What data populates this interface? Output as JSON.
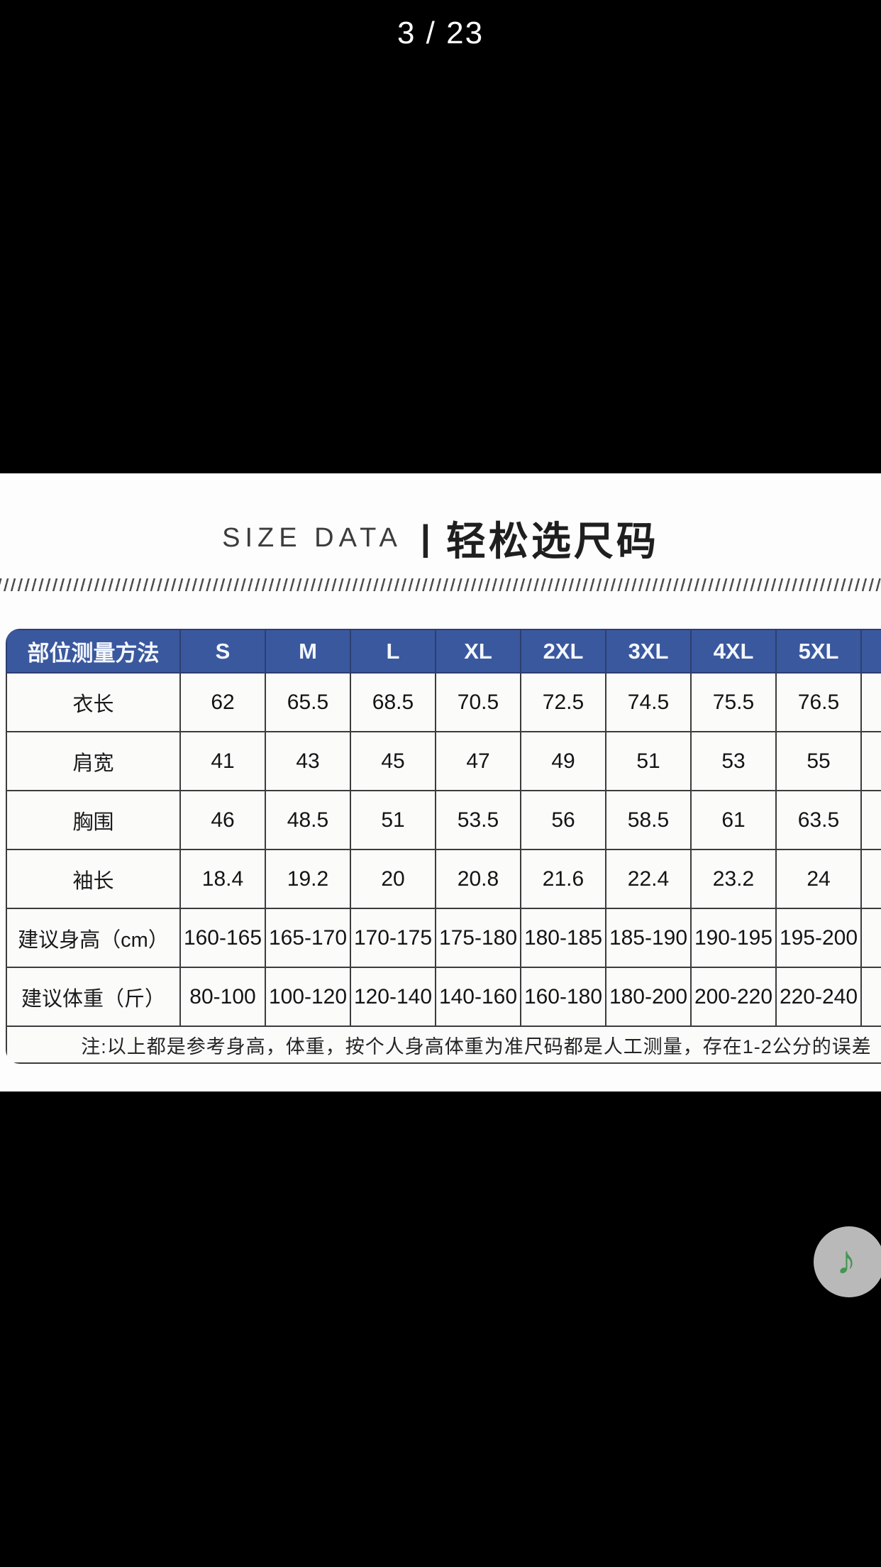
{
  "viewer": {
    "page_indicator": "3 / 23"
  },
  "size_panel": {
    "heading_en": "SIZE DATA",
    "heading_sep": "|",
    "heading_zh": "轻松选尺码",
    "table": {
      "corner_header": "部位测量方法",
      "size_headers": [
        "S",
        "M",
        "L",
        "XL",
        "2XL",
        "3XL",
        "4XL",
        "5XL"
      ],
      "clipped_header": "",
      "rows": [
        {
          "label": "衣长",
          "values": [
            "62",
            "65.5",
            "68.5",
            "70.5",
            "72.5",
            "74.5",
            "75.5",
            "76.5"
          ],
          "clipped": ""
        },
        {
          "label": "肩宽",
          "values": [
            "41",
            "43",
            "45",
            "47",
            "49",
            "51",
            "53",
            "55"
          ],
          "clipped": ""
        },
        {
          "label": "胸围",
          "values": [
            "46",
            "48.5",
            "51",
            "53.5",
            "56",
            "58.5",
            "61",
            "63.5"
          ],
          "clipped": ""
        },
        {
          "label": "袖长",
          "values": [
            "18.4",
            "19.2",
            "20",
            "20.8",
            "21.6",
            "22.4",
            "23.2",
            "24"
          ],
          "clipped": ""
        },
        {
          "label": "建议身高（cm）",
          "values": [
            "160-165",
            "165-170",
            "170-175",
            "175-180",
            "180-185",
            "185-190",
            "190-195",
            "195-200"
          ],
          "clipped": "2"
        },
        {
          "label": "建议体重（斤）",
          "values": [
            "80-100",
            "100-120",
            "120-140",
            "140-160",
            "160-180",
            "180-200",
            "200-220",
            "220-240"
          ],
          "clipped": "2"
        }
      ],
      "note": "注:以上都是参考身高，体重，按个人身高体重为准尺码都是人工测量，存在1-2公分的误差"
    }
  },
  "floating": {
    "music_icon": "♪"
  },
  "colors": {
    "header_blue": "#3a589e",
    "note_green": "#449552",
    "button_gray": "#b9b9b9",
    "background": "#000000"
  }
}
